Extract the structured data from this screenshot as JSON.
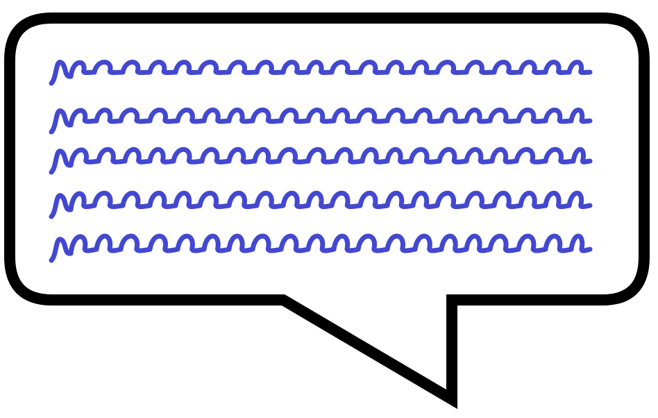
{
  "colors": {
    "background": "#ffffff",
    "bubble_fill": "#ffffff",
    "bubble_outline": "#000000",
    "scribble": "#4348d0"
  },
  "icons": {
    "bubble": "speech-bubble-icon",
    "line": "squiggle-line-icon"
  },
  "scribble_line_count": 5
}
